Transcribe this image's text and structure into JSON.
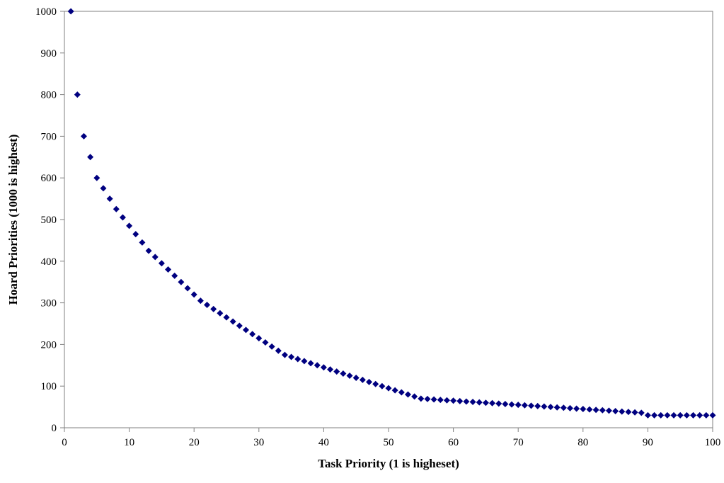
{
  "chart_data": {
    "type": "scatter",
    "title": "",
    "xlabel": "Task Priority (1 is higheset)",
    "ylabel": "Hoard Priorities (1000 is highest)",
    "xlim": [
      0,
      100
    ],
    "ylim": [
      0,
      1000
    ],
    "xticks": [
      "0",
      "10",
      "20",
      "30",
      "40",
      "50",
      "60",
      "70",
      "80",
      "90",
      "100"
    ],
    "yticks": [
      "0",
      "100",
      "200",
      "300",
      "400",
      "500",
      "600",
      "700",
      "800",
      "900",
      "1000"
    ],
    "grid": false,
    "legend": "none",
    "marker_color": "#000080",
    "marker": "diamond",
    "series": [
      {
        "x": [
          1,
          2,
          3,
          4,
          5,
          6,
          7,
          8,
          9,
          10,
          11,
          12,
          13,
          14,
          15,
          16,
          17,
          18,
          19,
          20,
          21,
          22,
          23,
          24,
          25,
          26,
          27,
          28,
          29,
          30,
          31,
          32,
          33,
          34,
          35,
          36,
          37,
          38,
          39,
          40,
          41,
          42,
          43,
          44,
          45,
          46,
          47,
          48,
          49,
          50,
          51,
          52,
          53,
          54,
          55,
          56,
          57,
          58,
          59,
          60,
          61,
          62,
          63,
          64,
          65,
          66,
          67,
          68,
          69,
          70,
          71,
          72,
          73,
          74,
          75,
          76,
          77,
          78,
          79,
          80,
          81,
          82,
          83,
          84,
          85,
          86,
          87,
          88,
          89,
          90,
          91,
          92,
          93,
          94,
          95,
          96,
          97,
          98,
          99,
          100
        ],
        "y": [
          1000,
          800,
          700,
          650,
          600,
          575,
          550,
          525,
          505,
          485,
          465,
          445,
          425,
          410,
          395,
          380,
          365,
          350,
          335,
          320,
          305,
          295,
          285,
          275,
          265,
          255,
          245,
          235,
          225,
          215,
          205,
          195,
          185,
          175,
          170,
          165,
          160,
          155,
          150,
          145,
          140,
          135,
          130,
          125,
          120,
          115,
          110,
          105,
          100,
          95,
          90,
          85,
          80,
          75,
          70,
          69,
          68,
          67,
          66,
          65,
          64,
          63,
          62,
          61,
          60,
          59,
          58,
          57,
          56,
          55,
          54,
          53,
          52,
          51,
          50,
          49,
          48,
          47,
          46,
          45,
          44,
          43,
          42,
          41,
          40,
          39,
          38,
          37,
          36,
          30,
          30,
          30,
          30,
          30,
          30,
          30,
          30,
          30,
          30,
          30
        ]
      }
    ]
  }
}
